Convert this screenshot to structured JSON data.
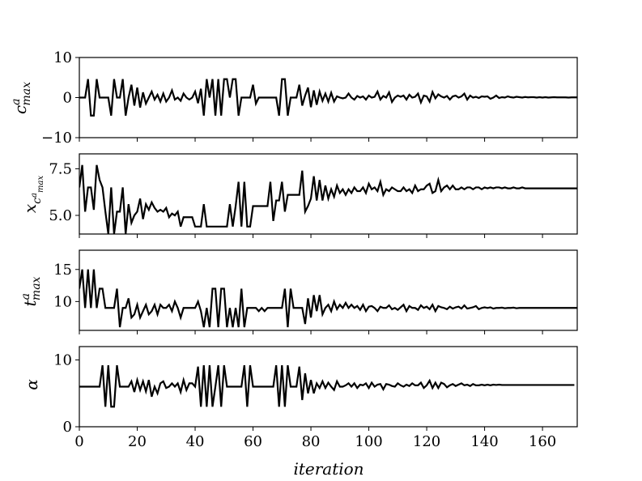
{
  "figure": {
    "xlabel": "iteration",
    "colors": {
      "line": "#000000",
      "frame": "#000000",
      "background": "#ffffff"
    }
  },
  "chart_data": [
    {
      "type": "line",
      "ylabel": "c^a_max",
      "xlim": [
        0,
        172
      ],
      "ylim": [
        -10,
        10
      ],
      "yticks": [
        -10,
        0,
        10
      ],
      "ytick_labels": [
        "−10",
        "0",
        "10"
      ],
      "xticks": [
        0,
        20,
        40,
        60,
        80,
        100,
        120,
        140,
        160
      ],
      "xtick_labels": [],
      "grid": false,
      "legend": "none",
      "series": [
        {
          "values": [
            0,
            0,
            0,
            4.6,
            -4.5,
            -4.5,
            4.6,
            0,
            0,
            0,
            0,
            -4.5,
            4.6,
            0,
            0,
            4.6,
            -4.5,
            0,
            3.2,
            -2,
            2.5,
            -2.5,
            1.3,
            -1.5,
            0,
            1.5,
            -0.5,
            0.7,
            -1,
            1,
            -1,
            0,
            1.8,
            -0.5,
            0,
            -0.8,
            1,
            0,
            -0.5,
            0,
            1.5,
            -1.4,
            2.2,
            -4.5,
            4.6,
            0,
            4.6,
            -4.5,
            4.6,
            -4.5,
            4.6,
            4.6,
            0,
            4.6,
            4.6,
            -4.5,
            0,
            0,
            0,
            0,
            3.2,
            -1.5,
            0,
            0,
            0,
            0,
            0,
            0,
            0,
            -4.5,
            4.6,
            4.6,
            -4.5,
            0,
            0,
            0,
            3.2,
            -2,
            0.5,
            2.5,
            -2.4,
            1.8,
            -1.8,
            1.5,
            -0.8,
            1,
            -1,
            1.2,
            -1,
            0.3,
            0,
            -0.2,
            0,
            1,
            0,
            -0.5,
            0.4,
            0,
            0.3,
            -0.5,
            0.5,
            0,
            0.2,
            1.5,
            -0.5,
            0.4,
            0,
            1.3,
            -1.1,
            0,
            0.5,
            0.2,
            0.5,
            -0.5,
            0.7,
            0,
            0.2,
            1,
            -1.2,
            0.5,
            0.3,
            -1,
            1.4,
            -0.2,
            0.8,
            0.3,
            0,
            0.4,
            -0.5,
            0.3,
            0.5,
            0,
            0.3,
            1,
            -0.5,
            0.5,
            0,
            0.2,
            -0.1,
            0.3,
            0.2,
            0.3,
            -0.3,
            0,
            0.5,
            -0.1,
            0.1,
            0,
            0.3,
            0.1,
            0,
            0.2,
            0.1,
            0,
            0.15,
            0.05,
            0.1,
            0.1,
            0,
            0.1,
            0,
            0.1,
            0,
            0.05,
            0.1,
            0.05,
            0.05,
            0.05,
            0.05,
            0,
            0.05,
            0.05,
            0.05,
            0.05,
            0
          ]
        }
      ]
    },
    {
      "type": "line",
      "ylabel": "x_{c^a_max}",
      "xlim": [
        0,
        172
      ],
      "ylim": [
        4,
        8.3
      ],
      "yticks": [
        5,
        7.5
      ],
      "ytick_labels": [
        "5.0",
        "7.5"
      ],
      "xticks": [
        0,
        20,
        40,
        60,
        80,
        100,
        120,
        140,
        160
      ],
      "xtick_labels": [],
      "grid": false,
      "legend": "none",
      "series": [
        {
          "values": [
            6.5,
            7.7,
            5.2,
            6.5,
            6.5,
            5.3,
            7.7,
            6.9,
            6.5,
            5.2,
            4,
            6.5,
            4,
            5.2,
            5.2,
            6.5,
            4,
            5.6,
            4.6,
            5,
            5.2,
            5.9,
            4.8,
            5.6,
            5.3,
            5.7,
            5.4,
            5.2,
            5.3,
            5.2,
            5.4,
            4.9,
            5.1,
            5,
            5.2,
            4.4,
            4.9,
            4.9,
            4.9,
            4.9,
            4.4,
            4.4,
            4.4,
            5.6,
            4.4,
            4.4,
            4.4,
            4.4,
            4.4,
            4.4,
            4.4,
            4.4,
            5.6,
            4.4,
            5.5,
            6.8,
            4.4,
            6.8,
            4.4,
            4.4,
            5.5,
            5.5,
            5.5,
            5.5,
            5.5,
            5.5,
            6.8,
            4.7,
            5.8,
            5.8,
            6.8,
            5.2,
            6.1,
            6.1,
            6.1,
            6.1,
            6.1,
            7.4,
            5.2,
            5.5,
            5.9,
            7.1,
            5.8,
            6.9,
            5.8,
            6.6,
            5.9,
            6.4,
            6,
            6.6,
            6.2,
            6.4,
            6.1,
            6.4,
            6.2,
            6.5,
            6.3,
            6.3,
            6.5,
            6.2,
            6.7,
            6.4,
            6.5,
            6.3,
            6.8,
            6.1,
            6.4,
            6.3,
            6.5,
            6.4,
            6.3,
            6.3,
            6.5,
            6.3,
            6.4,
            6.2,
            6.6,
            6.3,
            6.4,
            6.4,
            6.6,
            6.7,
            6.2,
            6.3,
            6.9,
            6.3,
            6.5,
            6.6,
            6.4,
            6.6,
            6.4,
            6.4,
            6.5,
            6.4,
            6.5,
            6.5,
            6.4,
            6.5,
            6.5,
            6.4,
            6.5,
            6.45,
            6.5,
            6.45,
            6.5,
            6.5,
            6.45,
            6.5,
            6.45,
            6.45,
            6.5,
            6.45,
            6.45,
            6.5,
            6.45,
            6.45,
            6.45,
            6.45,
            6.45,
            6.45,
            6.45,
            6.45,
            6.45,
            6.45,
            6.45,
            6.45,
            6.45,
            6.45,
            6.45,
            6.45,
            6.45,
            6.45,
            6.45,
            6.45
          ]
        }
      ]
    },
    {
      "type": "line",
      "ylabel": "t^a_max",
      "xlim": [
        0,
        172
      ],
      "ylim": [
        5.5,
        18
      ],
      "yticks": [
        10,
        15
      ],
      "ytick_labels": [
        "10",
        "15"
      ],
      "xticks": [
        0,
        20,
        40,
        60,
        80,
        100,
        120,
        140,
        160
      ],
      "xtick_labels": [],
      "grid": false,
      "legend": "none",
      "series": [
        {
          "values": [
            12,
            15,
            9,
            15,
            9,
            15,
            9,
            12,
            12,
            9,
            9,
            9,
            9,
            12,
            6,
            9,
            9,
            10.5,
            7.5,
            8,
            9.5,
            7.5,
            8.5,
            9.5,
            8,
            8.5,
            9.5,
            8,
            9.5,
            9,
            9,
            9.5,
            8.5,
            10,
            9,
            7.5,
            9,
            9,
            9,
            9,
            9,
            10,
            8.5,
            6,
            9,
            6,
            12,
            12,
            6,
            12,
            12,
            6,
            9,
            6,
            9,
            6,
            12,
            6,
            9,
            9,
            9,
            9,
            8.5,
            9,
            8.5,
            9,
            9,
            9,
            9,
            9,
            9,
            12,
            6,
            12,
            9,
            9,
            9,
            9,
            6.5,
            10.5,
            7.5,
            11,
            8.5,
            11,
            8,
            9,
            9.5,
            8.5,
            10,
            8.8,
            9.5,
            9,
            9.8,
            9,
            9.5,
            9,
            9.3,
            8.7,
            9.5,
            8.5,
            9.2,
            9.3,
            9,
            8.5,
            9.2,
            9,
            9,
            9.4,
            8.8,
            9,
            8.7,
            9.1,
            9.5,
            8.5,
            9.3,
            9,
            9,
            8.7,
            9.4,
            9,
            9.2,
            8.8,
            9.5,
            8.5,
            9.3,
            9.1,
            9,
            8.8,
            9.2,
            8.9,
            9.1,
            9.2,
            8.9,
            9.4,
            8.9,
            9,
            9.1,
            9.3,
            8.8,
            9,
            9.1,
            9,
            9.1,
            8.9,
            9,
            9,
            9.05,
            8.95,
            9,
            9,
            9.05,
            8.95,
            9,
            9,
            9,
            9,
            9,
            9,
            9,
            9,
            9,
            9,
            9,
            9,
            9,
            9,
            9,
            9,
            9,
            9,
            9,
            9,
            9
          ]
        }
      ]
    },
    {
      "type": "line",
      "ylabel": "α",
      "xlim": [
        0,
        172
      ],
      "ylim": [
        0,
        12
      ],
      "yticks": [
        0,
        10
      ],
      "ytick_labels": [
        "0",
        "10"
      ],
      "xticks": [
        0,
        20,
        40,
        60,
        80,
        100,
        120,
        140,
        160
      ],
      "xtick_labels": [
        "0",
        "20",
        "40",
        "60",
        "80",
        "100",
        "120",
        "140",
        "160"
      ],
      "grid": false,
      "legend": "none",
      "series": [
        {
          "values": [
            6,
            6,
            6,
            6,
            6,
            6,
            6,
            6,
            9.2,
            3,
            9.2,
            3,
            3,
            9.2,
            6,
            6,
            6,
            6,
            6.8,
            5.2,
            7,
            5.5,
            6.8,
            5.3,
            7,
            4.5,
            6,
            5,
            6.5,
            6.8,
            5.8,
            6,
            6.5,
            6,
            6.5,
            5.2,
            7,
            5.5,
            6.5,
            6.5,
            6,
            9,
            3,
            9.2,
            3,
            9.2,
            3,
            6,
            9.2,
            3,
            9.2,
            6,
            6,
            6,
            6,
            6,
            6,
            9.2,
            3,
            9.2,
            6,
            6,
            6,
            6,
            6,
            6,
            6,
            6,
            9.2,
            3,
            9.2,
            3,
            9.2,
            6,
            6,
            6,
            9,
            4,
            8,
            5,
            7,
            5,
            6.5,
            5.8,
            6.8,
            5.8,
            6.6,
            6,
            5.5,
            6.8,
            6,
            6,
            6.2,
            6.5,
            6,
            6.5,
            5.8,
            6.3,
            6.2,
            6.5,
            5.8,
            6.6,
            6,
            6.3,
            6.4,
            5.6,
            6.4,
            6.3,
            6.1,
            6,
            6.5,
            6.2,
            6,
            6.3,
            6.1,
            6.5,
            6.2,
            6.2,
            6.6,
            5.8,
            6.2,
            6.9,
            5.8,
            6.6,
            5.8,
            6.6,
            6.4,
            5.9,
            6.2,
            6.4,
            6.1,
            6.3,
            6.5,
            6.2,
            6.3,
            6.1,
            6.4,
            6.2,
            6.2,
            6.3,
            6.2,
            6.3,
            6.2,
            6.3,
            6.25,
            6.3,
            6.25,
            6.25,
            6.25,
            6.25,
            6.25,
            6.25,
            6.25,
            6.25,
            6.25,
            6.25,
            6.25,
            6.25,
            6.25,
            6.25,
            6.25,
            6.25,
            6.25,
            6.25,
            6.25,
            6.25,
            6.25,
            6.25,
            6.25,
            6.25,
            6.25,
            6.25
          ]
        }
      ]
    }
  ]
}
